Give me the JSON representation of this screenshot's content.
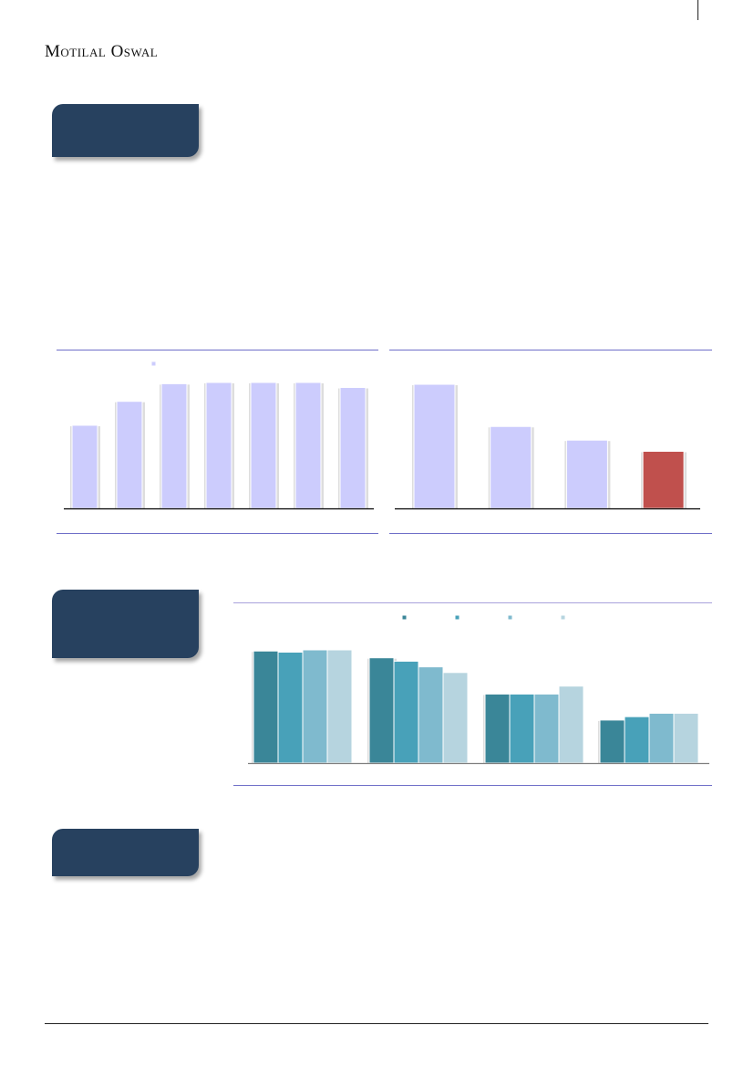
{
  "header": {
    "brand": "Motilal Oswal"
  },
  "colors": {
    "tab": "#27415f",
    "bar_light": "#ccccfd",
    "bar_highlight": "#c0504d",
    "rule": "#6f6fc8"
  },
  "chart_data": [
    {
      "type": "bar",
      "categories": [
        "",
        "",
        "",
        "",
        "",
        "",
        ""
      ],
      "values": [
        66,
        85,
        99,
        100,
        100,
        100,
        96
      ],
      "color": "#ccccfd",
      "legend_swatches": 1,
      "note": ""
    },
    {
      "type": "bar",
      "categories": [
        "",
        "",
        "",
        ""
      ],
      "values": [
        100,
        66,
        55,
        46
      ],
      "colors": [
        "#ccccfd",
        "#ccccfd",
        "#ccccfd",
        "#c0504d"
      ]
    },
    {
      "type": "bar",
      "categories": [
        "",
        "",
        "",
        ""
      ],
      "series": [
        {
          "color": "#3a8698",
          "values": [
            99,
            93,
            61,
            38
          ]
        },
        {
          "color": "#48a1b9",
          "values": [
            98,
            90,
            61,
            41
          ]
        },
        {
          "color": "#7fbace",
          "values": [
            100,
            85,
            61,
            44
          ]
        },
        {
          "color": "#b6d4df",
          "values": [
            100,
            80,
            68,
            44
          ]
        }
      ]
    }
  ]
}
